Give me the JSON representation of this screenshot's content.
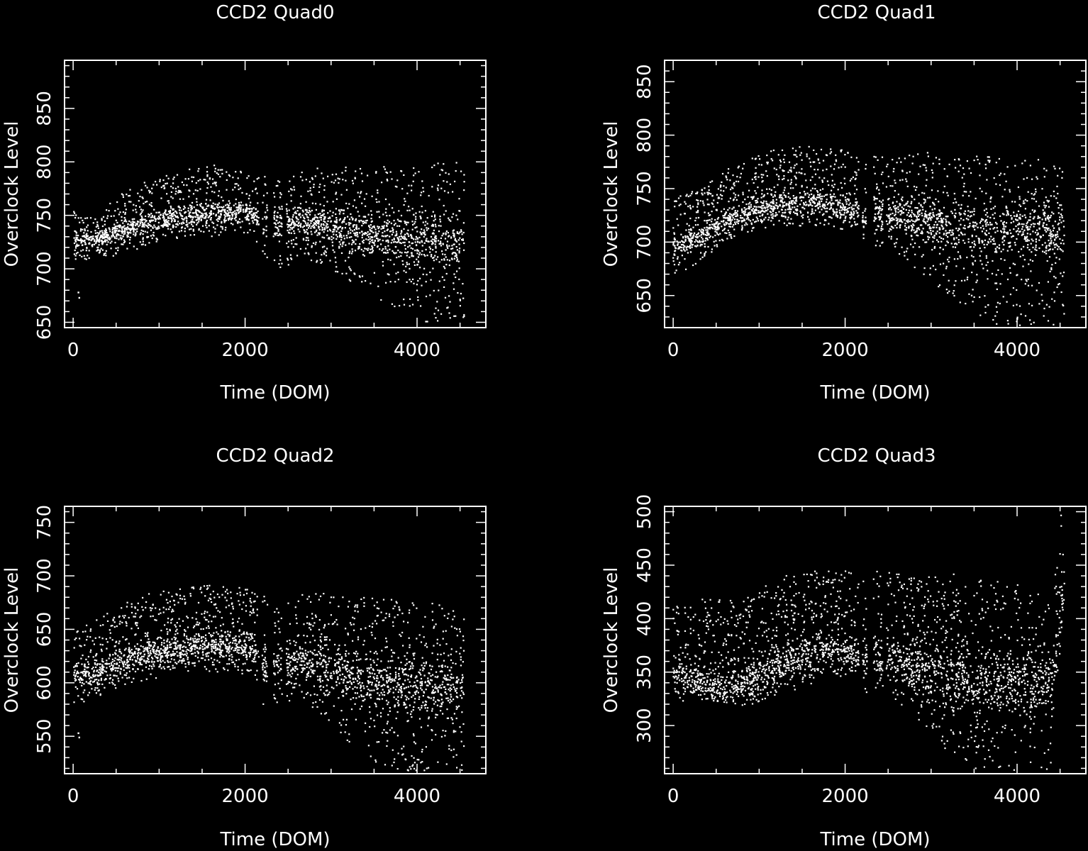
{
  "figure": {
    "background": "#000000",
    "foreground": "#ffffff"
  },
  "chart_data": [
    {
      "type": "scatter",
      "title": "CCD2 Quad0",
      "xlabel": "Time (DOM)",
      "ylabel": "Overclock Level",
      "xlim": [
        -100,
        4800
      ],
      "ylim": [
        645,
        895
      ],
      "xticks": [
        0,
        2000,
        4000
      ],
      "yticks": [
        650,
        700,
        750,
        800,
        850
      ],
      "trend": {
        "x": [
          0,
          300,
          500,
          800,
          1200,
          1600,
          2100,
          2200,
          2450,
          2600,
          2900,
          3200,
          3500,
          3800,
          4100,
          4400,
          4550
        ],
        "lo": [
          705,
          712,
          712,
          720,
          728,
          730,
          732,
          700,
          700,
          710,
          705,
          690,
          670,
          655,
          650,
          650,
          650
        ],
        "hi": [
          755,
          745,
          770,
          780,
          790,
          798,
          790,
          790,
          790,
          790,
          795,
          795,
          798,
          795,
          800,
          800,
          800
        ],
        "core": [
          728,
          728,
          735,
          742,
          748,
          752,
          752,
          740,
          742,
          745,
          742,
          735,
          730,
          728,
          725,
          725,
          725
        ]
      },
      "gaps": [
        [
          2160,
          2200
        ],
        [
          2260,
          2330
        ],
        [
          2430,
          2480
        ]
      ],
      "outliers": [
        {
          "x": 60,
          "y": 678
        },
        {
          "x": 70,
          "y": 673
        }
      ]
    },
    {
      "type": "scatter",
      "title": "CCD2 Quad1",
      "xlabel": "Time (DOM)",
      "ylabel": "Overclock Level",
      "xlim": [
        -100,
        4800
      ],
      "ylim": [
        620,
        870
      ],
      "xticks": [
        0,
        2000,
        4000
      ],
      "yticks": [
        650,
        700,
        750,
        800,
        850
      ],
      "trend": {
        "x": [
          0,
          300,
          600,
          900,
          1300,
          1700,
          2150,
          2200,
          2450,
          2600,
          2900,
          3200,
          3500,
          3800,
          4100,
          4400,
          4550
        ],
        "lo": [
          668,
          680,
          700,
          710,
          715,
          712,
          712,
          690,
          690,
          690,
          670,
          650,
          630,
          622,
          622,
          622,
          622
        ],
        "hi": [
          745,
          748,
          768,
          778,
          790,
          790,
          785,
          780,
          780,
          780,
          785,
          785,
          782,
          778,
          778,
          778,
          778
        ],
        "core": [
          692,
          705,
          718,
          728,
          735,
          737,
          730,
          722,
          722,
          725,
          722,
          715,
          710,
          710,
          712,
          712,
          712
        ]
      },
      "gaps": [
        [
          2160,
          2200
        ],
        [
          2250,
          2330
        ],
        [
          2440,
          2480
        ]
      ],
      "outliers": []
    },
    {
      "type": "scatter",
      "title": "CCD2 Quad2",
      "xlabel": "Time (DOM)",
      "ylabel": "Overclock Level",
      "xlim": [
        -100,
        4800
      ],
      "ylim": [
        515,
        765
      ],
      "xticks": [
        0,
        2000,
        4000
      ],
      "yticks": [
        550,
        600,
        650,
        700,
        750
      ],
      "trend": {
        "x": [
          0,
          300,
          500,
          800,
          1200,
          1600,
          2100,
          2200,
          2450,
          2600,
          2900,
          3200,
          3500,
          3800,
          4100,
          4400,
          4550
        ],
        "lo": [
          578,
          588,
          595,
          602,
          608,
          610,
          608,
          580,
          580,
          585,
          570,
          545,
          522,
          518,
          518,
          518,
          518
        ],
        "hi": [
          650,
          660,
          670,
          682,
          690,
          692,
          688,
          682,
          682,
          682,
          685,
          685,
          682,
          678,
          675,
          672,
          670
        ],
        "core": [
          605,
          610,
          618,
          625,
          630,
          634,
          634,
          615,
          617,
          620,
          618,
          608,
          600,
          598,
          596,
          596,
          596
        ]
      },
      "gaps": [
        [
          2160,
          2200
        ],
        [
          2260,
          2330
        ],
        [
          2430,
          2480
        ]
      ],
      "outliers": [
        {
          "x": 60,
          "y": 553
        },
        {
          "x": 70,
          "y": 549
        }
      ]
    },
    {
      "type": "scatter",
      "title": "CCD2 Quad3",
      "xlabel": "Time (DOM)",
      "ylabel": "Overclock Level",
      "xlim": [
        -100,
        4800
      ],
      "ylim": [
        255,
        505
      ],
      "xticks": [
        0,
        2000,
        4000
      ],
      "yticks": [
        300,
        350,
        400,
        450,
        500
      ],
      "trend": {
        "x": [
          0,
          300,
          600,
          900,
          1300,
          1700,
          2150,
          2200,
          2450,
          2600,
          2900,
          3200,
          3500,
          3800,
          4100,
          4400,
          4500,
          4550
        ],
        "lo": [
          322,
          325,
          322,
          318,
          330,
          342,
          345,
          330,
          330,
          320,
          300,
          275,
          260,
          258,
          258,
          258,
          330,
          350
        ],
        "hi": [
          415,
          418,
          418,
          425,
          440,
          445,
          445,
          445,
          445,
          445,
          442,
          442,
          440,
          435,
          430,
          425,
          500,
          500
        ],
        "core": [
          348,
          340,
          335,
          342,
          360,
          368,
          368,
          365,
          362,
          360,
          352,
          345,
          340,
          340,
          340,
          340,
          400,
          420
        ]
      },
      "gaps": [
        [
          2160,
          2200
        ],
        [
          2260,
          2330
        ],
        [
          2440,
          2480
        ]
      ],
      "outliers": []
    }
  ]
}
